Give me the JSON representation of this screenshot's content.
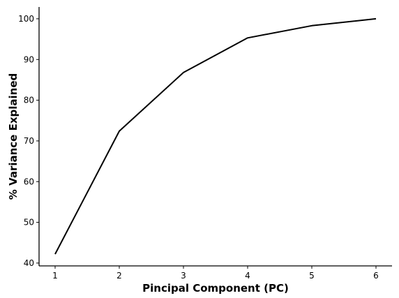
{
  "chart_data": {
    "type": "line",
    "title": "",
    "xlabel": "Pincipal Component (PC)",
    "ylabel": "% Variance Explained",
    "x": [
      1,
      2,
      3,
      4,
      5,
      6
    ],
    "x_ticks": [
      "1",
      "2",
      "3",
      "4",
      "5",
      "6"
    ],
    "y_ticks": [
      "40",
      "50",
      "60",
      "70",
      "80",
      "90",
      "100"
    ],
    "xlim": [
      0.75,
      6.25
    ],
    "ylim": [
      39.3,
      102.9
    ],
    "series": [
      {
        "values": [
          42.2,
          72.4,
          86.8,
          95.3,
          98.3,
          100.0
        ],
        "color": "#000000"
      }
    ],
    "grid": false,
    "legend": "none",
    "spines": [
      "left",
      "bottom"
    ]
  }
}
